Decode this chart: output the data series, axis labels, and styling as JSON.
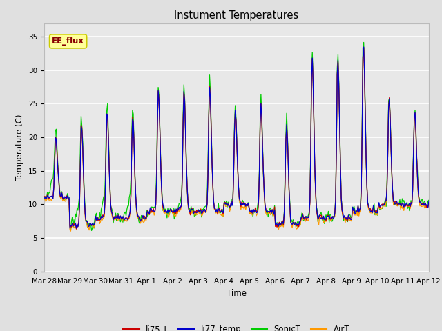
{
  "title": "Instument Temperatures",
  "xlabel": "Time",
  "ylabel": "Temperature (C)",
  "ylim": [
    0,
    37
  ],
  "yticks": [
    0,
    5,
    10,
    15,
    20,
    25,
    30,
    35
  ],
  "x_labels": [
    "Mar 28",
    "Mar 29",
    "Mar 30",
    "Mar 31",
    "Apr 1",
    "Apr 2",
    "Apr 3",
    "Apr 4",
    "Apr 5",
    "Apr 6",
    "Apr 7",
    "Apr 8",
    "Apr 9",
    "Apr 10",
    "Apr 11",
    "Apr 12"
  ],
  "fig_bg_color": "#e0e0e0",
  "plot_bg_color": "#e8e8e8",
  "grid_color": "#ffffff",
  "annotation_text": "EE_flux",
  "annotation_bg": "#ffff99",
  "annotation_fg": "#880000",
  "annotation_edge": "#cccc00",
  "colors": {
    "li75_t": "#cc0000",
    "li77_temp": "#0000cc",
    "SonicT": "#00cc00",
    "AirT": "#ff9900"
  },
  "n_points": 480,
  "seed": 12345
}
